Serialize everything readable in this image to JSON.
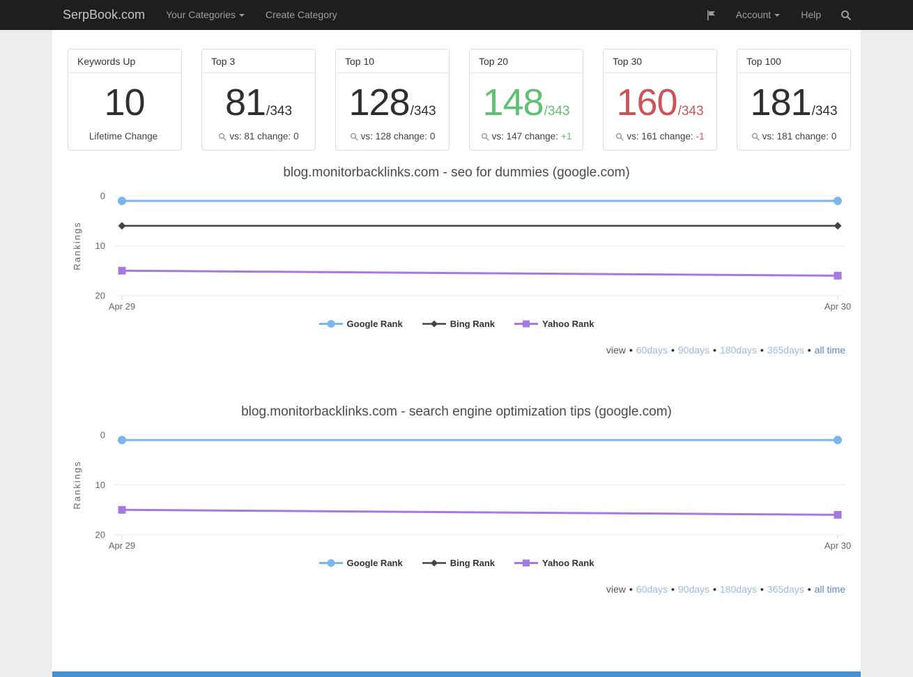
{
  "navbar": {
    "brand": "SerpBook.com",
    "left_items": [
      {
        "label": "Your Categories",
        "has_caret": true
      },
      {
        "label": "Create Category",
        "has_caret": false
      }
    ],
    "account_label": "Account",
    "help_label": "Help",
    "bg_color": "#1e1e1e"
  },
  "stat_cards": [
    {
      "title": "Keywords Up",
      "value": "10",
      "denominator": "",
      "value_color": "#2f2f2f",
      "show_search_icon": false,
      "footer_text": "Lifetime Change",
      "change_text": "",
      "change_color": "#444444"
    },
    {
      "title": "Top 3",
      "value": "81",
      "denominator": "/343",
      "value_color": "#2f2f2f",
      "show_search_icon": true,
      "footer_text": "vs: 81 change:",
      "change_text": "0",
      "change_color": "#444444"
    },
    {
      "title": "Top 10",
      "value": "128",
      "denominator": "/343",
      "value_color": "#2f2f2f",
      "show_search_icon": true,
      "footer_text": "vs: 128 change:",
      "change_text": "0",
      "change_color": "#444444"
    },
    {
      "title": "Top 20",
      "value": "148",
      "denominator": "/343",
      "value_color": "#5fc072",
      "show_search_icon": true,
      "footer_text": "vs: 147 change:",
      "change_text": "+1",
      "change_color": "#5fc072"
    },
    {
      "title": "Top 30",
      "value": "160",
      "denominator": "/343",
      "value_color": "#cb545a",
      "show_search_icon": true,
      "footer_text": "vs: 161 change:",
      "change_text": "-1",
      "change_color": "#cb545a"
    },
    {
      "title": "Top 100",
      "value": "181",
      "denominator": "/343",
      "value_color": "#2f2f2f",
      "show_search_icon": true,
      "footer_text": "vs: 181 change:",
      "change_text": "0",
      "change_color": "#444444"
    }
  ],
  "chart_data": [
    {
      "type": "line",
      "title": "blog.monitorbacklinks.com - seo for dummies (google.com)",
      "ylabel": "Rankings",
      "x": [
        "Apr 29",
        "Apr 30"
      ],
      "y_inverted": true,
      "ylim": [
        0,
        20
      ],
      "yticks": [
        0,
        10,
        20
      ],
      "grid": true,
      "legend_position": "bottom",
      "series": [
        {
          "name": "Google Rank",
          "color": "#7cb5ec",
          "marker": "circle",
          "values": [
            1,
            1
          ]
        },
        {
          "name": "Bing Rank",
          "color": "#434348",
          "marker": "diamond",
          "values": [
            6,
            6
          ]
        },
        {
          "name": "Yahoo Rank",
          "color": "#a678e2",
          "marker": "square",
          "values": [
            15,
            16
          ]
        }
      ],
      "view_links": {
        "label": "view",
        "separator": "•",
        "options": [
          "60days",
          "90days",
          "180days",
          "365days"
        ],
        "all_time": "all time"
      }
    },
    {
      "type": "line",
      "title": "blog.monitorbacklinks.com - search engine optimization tips (google.com)",
      "ylabel": "Rankings",
      "x": [
        "Apr 29",
        "Apr 30"
      ],
      "y_inverted": true,
      "ylim": [
        0,
        20
      ],
      "yticks": [
        0,
        10,
        20
      ],
      "grid": true,
      "legend_position": "bottom",
      "series": [
        {
          "name": "Google Rank",
          "color": "#7cb5ec",
          "marker": "circle",
          "values": [
            1,
            1
          ]
        },
        {
          "name": "Bing Rank",
          "color": "#434348",
          "marker": "diamond",
          "values": []
        },
        {
          "name": "Yahoo Rank",
          "color": "#a678e2",
          "marker": "square",
          "values": [
            15,
            16
          ]
        }
      ],
      "view_links": {
        "label": "view",
        "separator": "•",
        "options": [
          "60days",
          "90days",
          "180days",
          "365days"
        ],
        "all_time": "all time"
      }
    }
  ],
  "colors": {
    "page_bg": "#ededed",
    "content_bg": "#ffffff",
    "grid_line": "#e7edf3",
    "axis_line": "#ccd4de",
    "axis_text": "#666666",
    "legend_text": "#333333",
    "link_light": "#9fb9e0",
    "link_strong": "#5d86cc",
    "footer_bar": "#4691d3"
  }
}
